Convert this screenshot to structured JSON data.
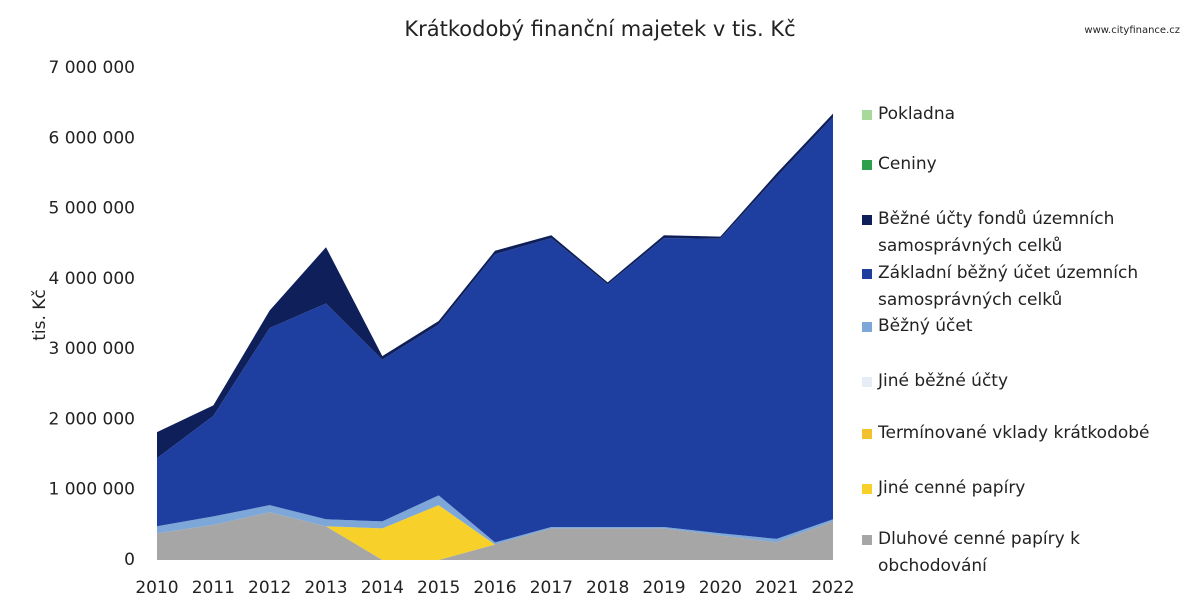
{
  "chart_data": {
    "type": "stacked_area",
    "title": "Krátkodobý finanční majetek v tis. Kč",
    "source": "www.cityfinance.cz",
    "y_label": "tis. Kč",
    "categories": [
      "2010",
      "2011",
      "2012",
      "2013",
      "2014",
      "2015",
      "2016",
      "2017",
      "2018",
      "2019",
      "2020",
      "2021",
      "2022"
    ],
    "ylim": [
      0,
      7000000
    ],
    "yticks": [
      0,
      {
        "value": 1000000,
        "label": "1 000 000"
      },
      {
        "value": 2000000,
        "label": "2 000 000"
      },
      {
        "value": 3000000,
        "label": "3 000 000"
      },
      {
        "value": 4000000,
        "label": "4 000 000"
      },
      {
        "value": 5000000,
        "label": "5 000 000"
      },
      {
        "value": 6000000,
        "label": "6 000 000"
      },
      {
        "value": 7000000,
        "label": "7 000 000"
      }
    ],
    "series": [
      {
        "name": "Pokladna",
        "color": "#a6d99a",
        "values": [
          0,
          0,
          0,
          0,
          0,
          0,
          0,
          0,
          0,
          0,
          0,
          0,
          0
        ]
      },
      {
        "name": "Ceniny",
        "color": "#2ca04a",
        "values": [
          0,
          0,
          0,
          0,
          0,
          0,
          0,
          0,
          0,
          0,
          0,
          0,
          0
        ]
      },
      {
        "name": "Běžné účty fondů územních samosprávných celků",
        "color": "#0e1f5a",
        "values": [
          370000,
          150000,
          250000,
          800000,
          50000,
          50000,
          50000,
          40000,
          30000,
          40000,
          30000,
          50000,
          50000
        ]
      },
      {
        "name": "Základní běžný účet územních samosprávných celků",
        "color": "#1f3fa0",
        "values": [
          970000,
          1430000,
          2520000,
          3070000,
          2300000,
          2430000,
          4100000,
          4110000,
          3450000,
          4110000,
          4190000,
          5150000,
          5720000
        ]
      },
      {
        "name": "Běžný účet",
        "color": "#7ca7d8",
        "values": [
          100000,
          120000,
          100000,
          100000,
          100000,
          140000,
          30000,
          20000,
          20000,
          20000,
          30000,
          50000,
          30000
        ]
      },
      {
        "name": "Jiné běžné účty",
        "color": "#e6edf7",
        "values": [
          0,
          0,
          0,
          0,
          0,
          0,
          0,
          0,
          0,
          0,
          0,
          0,
          0
        ]
      },
      {
        "name": "Termínované vklady krátkodobé",
        "color": "#f2c12e",
        "values": [
          0,
          0,
          0,
          0,
          0,
          0,
          0,
          0,
          0,
          0,
          0,
          0,
          0
        ]
      },
      {
        "name": "Jiné cenné papíry",
        "color": "#f7d02a",
        "values": [
          0,
          0,
          0,
          0,
          450000,
          780000,
          0,
          0,
          0,
          0,
          0,
          0,
          0
        ]
      },
      {
        "name": "Dluhové cenné papíry k obchodování",
        "color": "#a6a6a6",
        "values": [
          380000,
          500000,
          680000,
          480000,
          0,
          0,
          220000,
          450000,
          450000,
          450000,
          350000,
          250000,
          550000
        ]
      }
    ]
  }
}
